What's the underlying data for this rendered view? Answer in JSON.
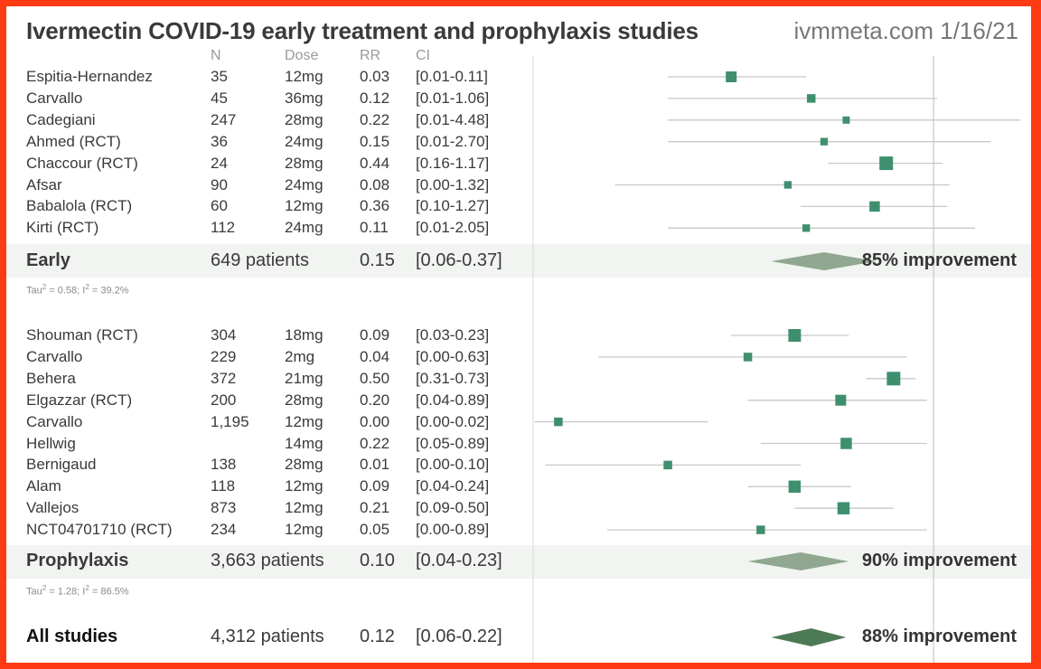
{
  "header": {
    "title": "Ivermectin COVID-19 early treatment and prophylaxis studies",
    "source": "ivmmeta.com 1/16/21"
  },
  "columns": {
    "n": "N",
    "dose": "Dose",
    "rr": "RR",
    "ci": "CI"
  },
  "colors": {
    "marker": "#3f8f6e",
    "line": "#c8c8c8",
    "early_diamond": "#8fa88f",
    "all_diamond": "#4c7a55",
    "background_frame": "#ff3b14",
    "band": "#f1f4f1"
  },
  "chart_data": {
    "type": "forest",
    "x_scale": "log",
    "reference_line": 1,
    "groups": [
      {
        "name": "Early",
        "patients": "649 patients",
        "rr": "0.15",
        "ci": "[0.06-0.37]",
        "estimate": 0.15,
        "lower": 0.06,
        "upper": 0.37,
        "improvement": "85% improvement",
        "tau": "0.58",
        "i2": "39.2%",
        "studies": [
          {
            "name": "Espitia-Hernandez",
            "n": "35",
            "dose": "12mg",
            "rr": "0.03",
            "ci": "[0.01-0.11]",
            "estimate": 0.03,
            "lower": 0.01,
            "upper": 0.11,
            "weight": 0.7
          },
          {
            "name": "Carvallo",
            "n": "45",
            "dose": "36mg",
            "rr": "0.12",
            "ci": "[0.01-1.06]",
            "estimate": 0.12,
            "lower": 0.01,
            "upper": 1.06,
            "weight": 0.45
          },
          {
            "name": "Cadegiani",
            "n": "247",
            "dose": "28mg",
            "rr": "0.22",
            "ci": "[0.01-4.48]",
            "estimate": 0.22,
            "lower": 0.01,
            "upper": 4.48,
            "weight": 0.3
          },
          {
            "name": "Ahmed (RCT)",
            "n": "36",
            "dose": "24mg",
            "rr": "0.15",
            "ci": "[0.01-2.70]",
            "estimate": 0.15,
            "lower": 0.01,
            "upper": 2.7,
            "weight": 0.33
          },
          {
            "name": "Chaccour (RCT)",
            "n": "24",
            "dose": "28mg",
            "rr": "0.44",
            "ci": "[0.16-1.17]",
            "estimate": 0.44,
            "lower": 0.16,
            "upper": 1.17,
            "weight": 1.0
          },
          {
            "name": "Afsar",
            "n": "90",
            "dose": "24mg",
            "rr": "0.08",
            "ci": "[0.00-1.32]",
            "estimate": 0.08,
            "lower": 0.004,
            "upper": 1.32,
            "weight": 0.33
          },
          {
            "name": "Babalola (RCT)",
            "n": "60",
            "dose": "12mg",
            "rr": "0.36",
            "ci": "[0.10-1.27]",
            "estimate": 0.36,
            "lower": 0.1,
            "upper": 1.27,
            "weight": 0.65
          },
          {
            "name": "Kirti (RCT)",
            "n": "112",
            "dose": "24mg",
            "rr": "0.11",
            "ci": "[0.01-2.05]",
            "estimate": 0.11,
            "lower": 0.01,
            "upper": 2.05,
            "weight": 0.33
          }
        ]
      },
      {
        "name": "Prophylaxis",
        "patients": "3,663 patients",
        "rr": "0.10",
        "ci": "[0.04-0.23]",
        "estimate": 0.1,
        "lower": 0.04,
        "upper": 0.23,
        "improvement": "90% improvement",
        "tau": "1.28",
        "i2": "86.5%",
        "studies": [
          {
            "name": "Shouman (RCT)",
            "n": "304",
            "dose": "18mg",
            "rr": "0.09",
            "ci": "[0.03-0.23]",
            "estimate": 0.09,
            "lower": 0.03,
            "upper": 0.23,
            "weight": 0.9
          },
          {
            "name": "Carvallo",
            "n": "229",
            "dose": "2mg",
            "rr": "0.04",
            "ci": "[0.00-0.63]",
            "estimate": 0.04,
            "lower": 0.003,
            "upper": 0.63,
            "weight": 0.45
          },
          {
            "name": "Behera",
            "n": "372",
            "dose": "21mg",
            "rr": "0.50",
            "ci": "[0.31-0.73]",
            "estimate": 0.5,
            "lower": 0.31,
            "upper": 0.73,
            "weight": 1.0
          },
          {
            "name": "Elgazzar (RCT)",
            "n": "200",
            "dose": "28mg",
            "rr": "0.20",
            "ci": "[0.04-0.89]",
            "estimate": 0.2,
            "lower": 0.04,
            "upper": 0.89,
            "weight": 0.7
          },
          {
            "name": "Carvallo",
            "n": "1,195",
            "dose": "12mg",
            "rr": "0.00",
            "ci": "[0.00-0.02]",
            "estimate": 0.0015,
            "lower": 0.0001,
            "upper": 0.02,
            "weight": 0.45
          },
          {
            "name": "Hellwig",
            "n": "",
            "dose": "14mg",
            "rr": "0.22",
            "ci": "[0.05-0.89]",
            "estimate": 0.22,
            "lower": 0.05,
            "upper": 0.89,
            "weight": 0.75
          },
          {
            "name": "Bernigaud",
            "n": "138",
            "dose": "28mg",
            "rr": "0.01",
            "ci": "[0.00-0.10]",
            "estimate": 0.01,
            "lower": 0.0012,
            "upper": 0.1,
            "weight": 0.45
          },
          {
            "name": "Alam",
            "n": "118",
            "dose": "12mg",
            "rr": "0.09",
            "ci": "[0.04-0.24]",
            "estimate": 0.09,
            "lower": 0.04,
            "upper": 0.24,
            "weight": 0.85
          },
          {
            "name": "Vallejos",
            "n": "873",
            "dose": "12mg",
            "rr": "0.21",
            "ci": "[0.09-0.50]",
            "estimate": 0.21,
            "lower": 0.09,
            "upper": 0.5,
            "weight": 0.85
          },
          {
            "name": "NCT04701710 (RCT)",
            "n": "234",
            "dose": "12mg",
            "rr": "0.05",
            "ci": "[0.00-0.89]",
            "estimate": 0.05,
            "lower": 0.0035,
            "upper": 0.89,
            "weight": 0.45
          }
        ]
      }
    ],
    "overall": {
      "name": "All studies",
      "patients": "4,312 patients",
      "rr": "0.12",
      "ci": "[0.06-0.22]",
      "estimate": 0.12,
      "lower": 0.06,
      "upper": 0.22,
      "improvement": "88% improvement"
    }
  }
}
